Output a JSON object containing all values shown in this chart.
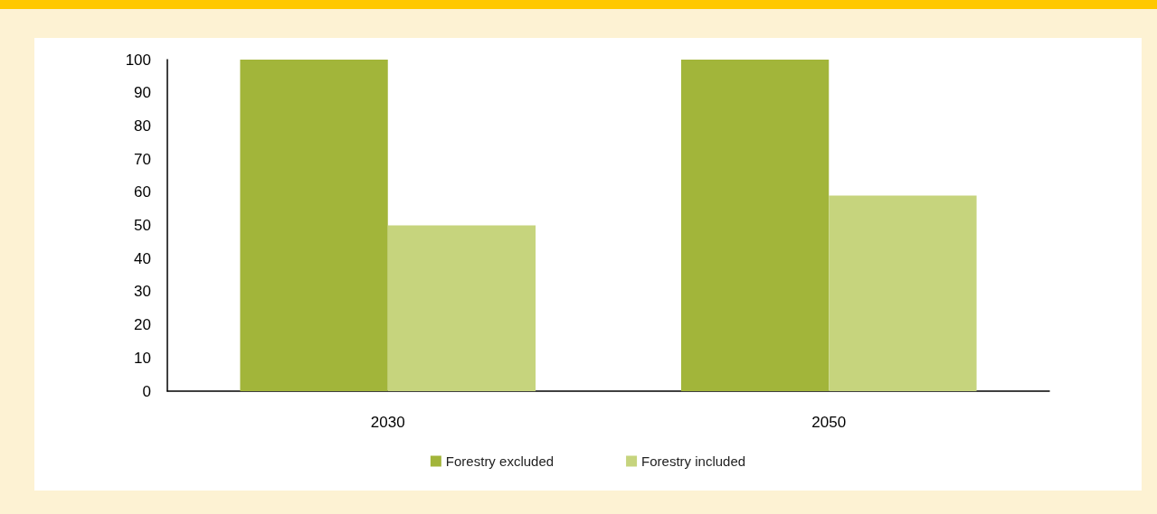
{
  "chart_data": {
    "type": "bar",
    "categories": [
      "2030",
      "2050"
    ],
    "series": [
      {
        "name": "Forestry excluded",
        "color": "#a2b53a",
        "values": [
          100,
          100
        ]
      },
      {
        "name": "Forestry included",
        "color": "#c6d47d",
        "values": [
          50,
          59
        ]
      }
    ],
    "ylim": [
      0,
      100
    ],
    "yticks": [
      0,
      10,
      20,
      30,
      40,
      50,
      60,
      70,
      80,
      90,
      100
    ],
    "grid": false,
    "legend": "bottom"
  }
}
